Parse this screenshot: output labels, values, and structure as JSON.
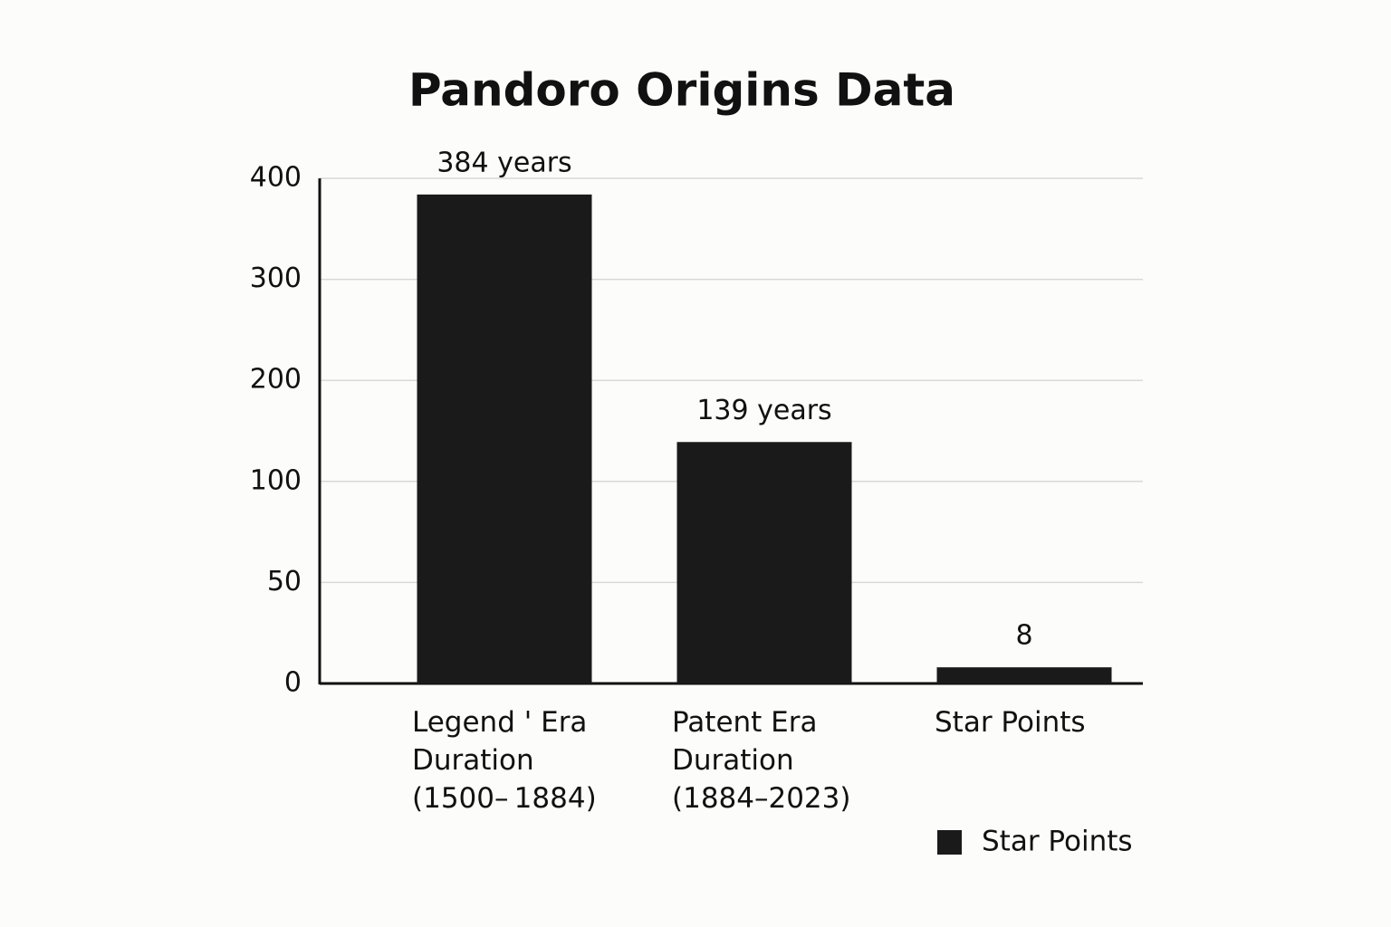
{
  "chart_data": {
    "type": "bar",
    "title": "Pandoro Origins Data",
    "categories": [
      "Legend ' Era Duration (1500– 1884)",
      "Patent Era Duration (1884–2023)",
      "Star Points"
    ],
    "series": [
      {
        "name": "Star Points",
        "color": "#1a1a1a",
        "values": [
          384,
          139,
          8
        ],
        "value_labels": [
          "384 years",
          "139 years",
          "8"
        ]
      }
    ],
    "ylim": [
      0,
      400
    ],
    "yticks": [
      0,
      50,
      100,
      200,
      300,
      400
    ],
    "grid": true,
    "legend": "bottom-right"
  }
}
